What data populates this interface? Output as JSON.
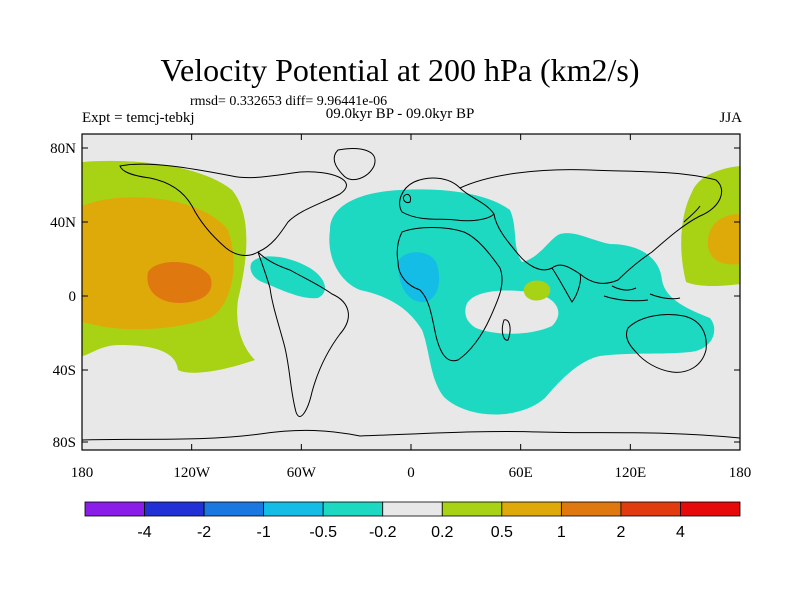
{
  "title": "Velocity Potential at 200 hPa (km2/s)",
  "stats": "rmsd= 0.332653  diff= 9.96441e-06",
  "experiment": "Expt = temcj-tebkj",
  "period": "09.0kyr BP - 09.0kyr BP",
  "season": "JJA",
  "lat_ticks": [
    "80N",
    "40N",
    "0",
    "40S",
    "80S"
  ],
  "lon_ticks": [
    "180",
    "120W",
    "60W",
    "0",
    "60E",
    "120E",
    "180"
  ],
  "colorbar": {
    "colors": [
      "#8a1ee8",
      "#2231d6",
      "#1a78e0",
      "#14bde6",
      "#1ed9c2",
      "#e8e8e8",
      "#a8d214",
      "#deaa0a",
      "#e07810",
      "#e03c10",
      "#e60a0a"
    ],
    "labels": [
      "-4",
      "-2",
      "-1",
      "-0.5",
      "-0.2",
      "0.2",
      "0.5",
      "1",
      "2",
      "4"
    ]
  },
  "colors": {
    "land_outline": "#000000",
    "ocean_background": "#e8e8e8",
    "negative_small": "#1ed9c2",
    "negative_mid": "#14bde6",
    "positive_small": "#a8d214",
    "positive_mid": "#deaa0a",
    "positive_high": "#e07810"
  }
}
